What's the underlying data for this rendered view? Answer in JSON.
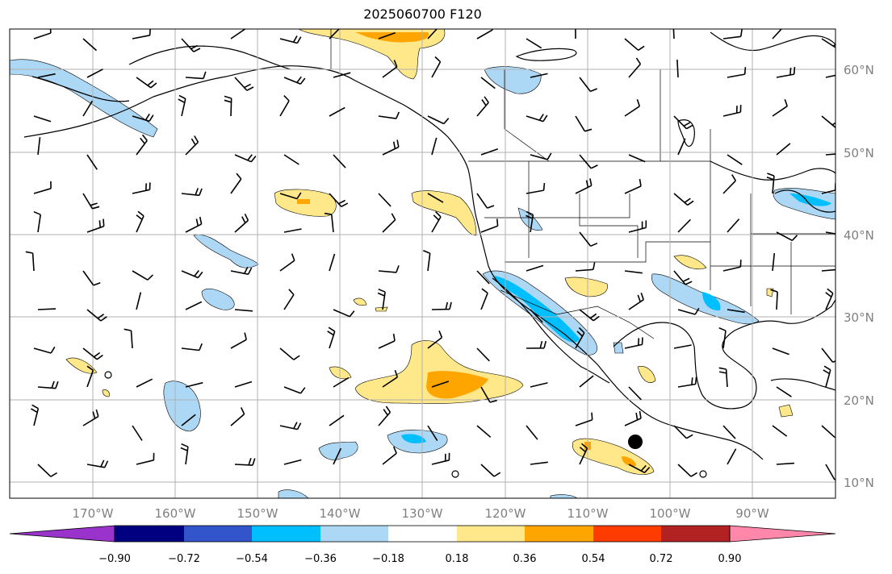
{
  "title": "2025060700 F120",
  "lat_labels": [
    "60°N",
    "50°N",
    "40°N",
    "30°N",
    "20°N",
    "10°N"
  ],
  "lon_labels": [
    "170°W",
    "160°W",
    "150°W",
    "140°W",
    "130°W",
    "120°W",
    "110°W",
    "100°W",
    "90°W"
  ],
  "colorbar": {
    "tick_labels": [
      "−0.90",
      "−0.72",
      "−0.54",
      "−0.36",
      "−0.18",
      "0.18",
      "0.36",
      "0.54",
      "0.72",
      "0.90"
    ],
    "colors": [
      "#9933cc",
      "#000080",
      "#3355cc",
      "#00bfff",
      "#add8f5",
      "#ffffff",
      "#ffe88a",
      "#ffa500",
      "#ff3c00",
      "#b22222",
      "#ff88aa"
    ]
  },
  "colors": {
    "neg_light": "#add8f5",
    "neg_strong": "#00bfff",
    "pos_light": "#ffe88a",
    "pos_strong": "#ffa500",
    "pos_stronger": "#ff3c00",
    "grid": "#b0b0b0",
    "coast": "#000000"
  },
  "marker": {
    "type": "filled-circle",
    "lon": -104.0,
    "lat": 15.0
  }
}
